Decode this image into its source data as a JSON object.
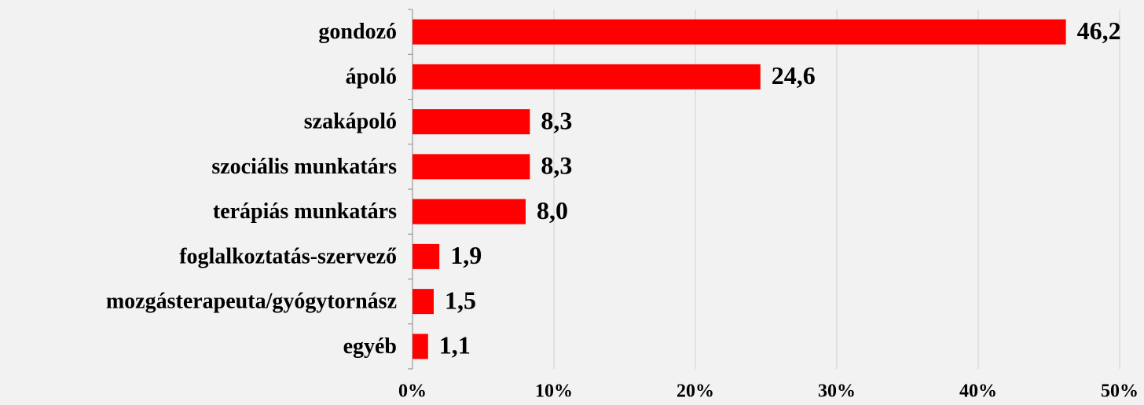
{
  "chart_data": {
    "type": "bar",
    "orientation": "horizontal",
    "categories": [
      "gondozó",
      "ápoló",
      "szakápoló",
      "szociális munkatárs",
      "terápiás munkatárs",
      "foglalkoztatás-szervező",
      "mozgásterapeuta/gyógytornász",
      "egyéb"
    ],
    "values": [
      46.2,
      24.6,
      8.3,
      8.3,
      8.0,
      1.9,
      1.5,
      1.1
    ],
    "value_labels": [
      "46,2",
      "24,6",
      "8,3",
      "8,3",
      "8,0",
      "1,9",
      "1,5",
      "1,1"
    ],
    "color": "#ff0000",
    "xlim": [
      0,
      50
    ],
    "xticks": [
      {
        "value": 0,
        "label": "0%"
      },
      {
        "value": 10,
        "label": "10%"
      },
      {
        "value": 20,
        "label": "20%"
      },
      {
        "value": 30,
        "label": "30%"
      },
      {
        "value": 40,
        "label": "40%"
      },
      {
        "value": 50,
        "label": "50%"
      }
    ],
    "grid": true
  }
}
